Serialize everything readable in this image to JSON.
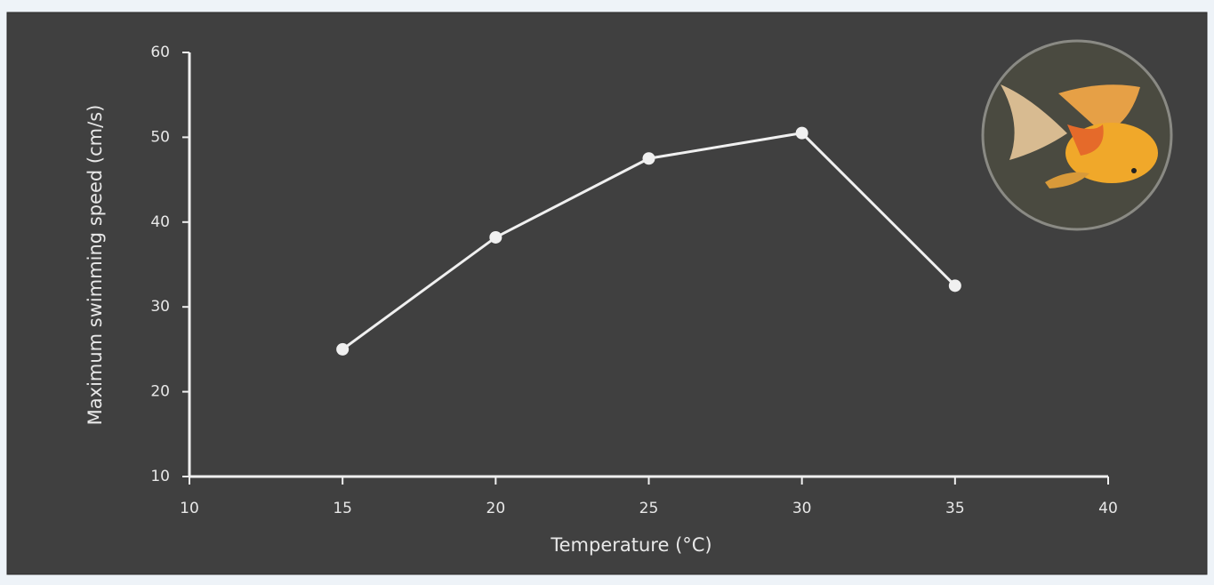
{
  "chart_data": {
    "type": "line",
    "x_label": "Temperature (°C)",
    "y_label": "Maximum swimming speed (cm/s)",
    "x": [
      15,
      20,
      25,
      30,
      35
    ],
    "values": [
      25,
      38.2,
      47.5,
      50.5,
      32.5
    ],
    "color": "#f0f0f0",
    "xlim": [
      10,
      40
    ],
    "xticks": [
      10,
      15,
      20,
      25,
      30,
      35,
      40
    ],
    "ylim": [
      10,
      60
    ],
    "yticks": [
      10,
      20,
      30,
      40,
      50,
      60
    ],
    "grid": false
  }
}
